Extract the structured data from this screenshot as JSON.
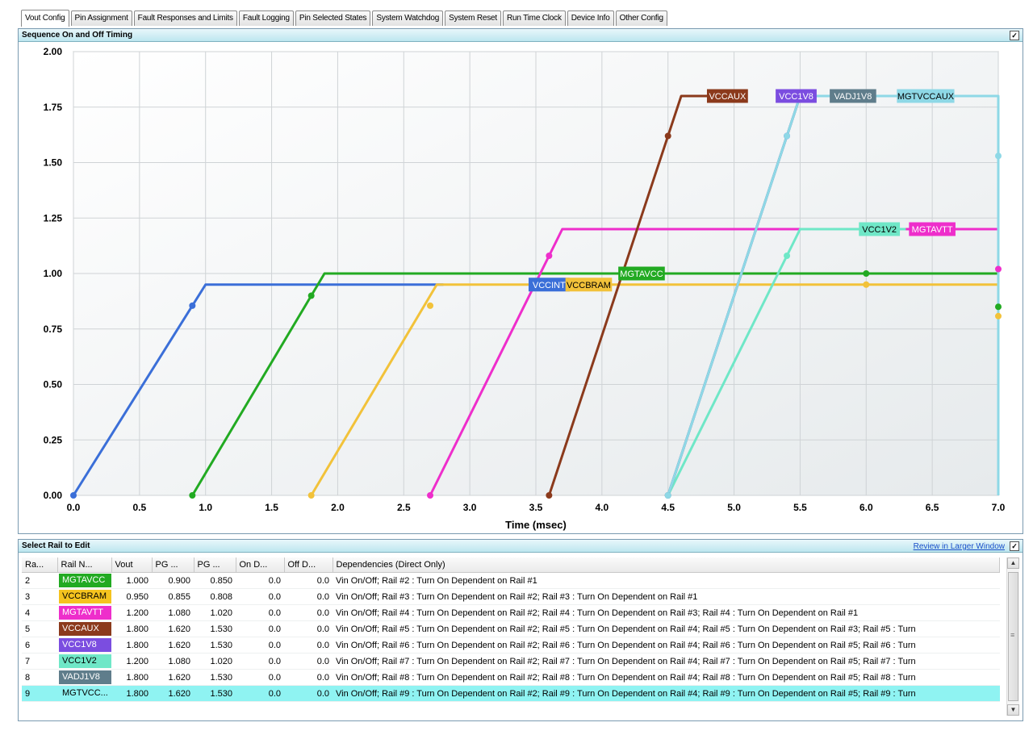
{
  "tabs": [
    {
      "label": "Vout Config",
      "active": true
    },
    {
      "label": "Pin Assignment"
    },
    {
      "label": "Fault Responses and Limits"
    },
    {
      "label": "Fault Logging"
    },
    {
      "label": "Pin Selected States"
    },
    {
      "label": "System Watchdog"
    },
    {
      "label": "System Reset"
    },
    {
      "label": "Run Time Clock"
    },
    {
      "label": "Device Info"
    },
    {
      "label": "Other Config"
    }
  ],
  "chart_panel": {
    "title": "Sequence On and Off Timing",
    "checkbox_mark": "✓"
  },
  "chart_data": {
    "type": "line",
    "xlabel": "Time (msec)",
    "ylabel": "",
    "xlim": [
      0,
      7
    ],
    "ylim": [
      0,
      2
    ],
    "x_ticks": [
      "0.0",
      "0.5",
      "1.0",
      "1.5",
      "2.0",
      "2.5",
      "3.0",
      "3.5",
      "4.0",
      "4.5",
      "5.0",
      "5.5",
      "6.0",
      "6.5",
      "7.0"
    ],
    "y_ticks": [
      "0.00",
      "0.25",
      "0.50",
      "0.75",
      "1.00",
      "1.25",
      "1.50",
      "1.75",
      "2.00"
    ],
    "grid": true,
    "series": [
      {
        "name": "VCCINT",
        "color": "#3b6fd8",
        "points": [
          [
            0,
            0
          ],
          [
            1.0,
            0.95
          ],
          [
            2.8,
            0.95
          ]
        ],
        "markers": [
          [
            0,
            0
          ],
          [
            0.9,
            0.855
          ]
        ],
        "label_at": [
          3.6,
          0.95
        ]
      },
      {
        "name": "MGTAVCC",
        "color": "#22aa22",
        "points": [
          [
            0.9,
            0
          ],
          [
            1.9,
            1.0
          ],
          [
            7.0,
            1.0
          ],
          [
            7.0,
            0.85
          ]
        ],
        "markers": [
          [
            0.9,
            0
          ],
          [
            1.8,
            0.9
          ],
          [
            6.0,
            1.0
          ],
          [
            7.0,
            0.85
          ]
        ],
        "label_at": [
          4.3,
          1.0
        ]
      },
      {
        "name": "VCCBRAM",
        "color": "#f2c23a",
        "points": [
          [
            1.8,
            0
          ],
          [
            2.75,
            0.95
          ],
          [
            7.0,
            0.95
          ],
          [
            7.0,
            0.808
          ]
        ],
        "markers": [
          [
            1.8,
            0
          ],
          [
            2.7,
            0.855
          ],
          [
            6.0,
            0.95
          ],
          [
            7.0,
            0.808
          ]
        ],
        "label_at": [
          3.9,
          0.95
        ]
      },
      {
        "name": "MGTAVTT",
        "color": "#ee2ecb",
        "points": [
          [
            2.7,
            0
          ],
          [
            3.7,
            1.2
          ],
          [
            7.0,
            1.2
          ],
          [
            7.0,
            1.02
          ]
        ],
        "markers": [
          [
            2.7,
            0
          ],
          [
            3.6,
            1.08
          ],
          [
            7.0,
            1.02
          ]
        ],
        "label_at": [
          6.5,
          1.2
        ]
      },
      {
        "name": "VCCAUX",
        "color": "#8b3a1c",
        "points": [
          [
            3.6,
            0
          ],
          [
            4.6,
            1.8
          ],
          [
            5.05,
            1.8
          ]
        ],
        "markers": [
          [
            3.6,
            0
          ],
          [
            4.5,
            1.62
          ]
        ],
        "label_at": [
          4.95,
          1.8
        ]
      },
      {
        "name": "VCC1V8",
        "color": "#7b4de0",
        "points": [
          [
            4.5,
            0
          ],
          [
            5.5,
            1.8
          ],
          [
            5.55,
            1.8
          ]
        ],
        "markers": [
          [
            4.5,
            0
          ],
          [
            5.4,
            1.62
          ]
        ],
        "label_at": [
          5.47,
          1.8
        ]
      },
      {
        "name": "VCC1V2",
        "color": "#6fe7c7",
        "points": [
          [
            4.5,
            0
          ],
          [
            5.5,
            1.2
          ],
          [
            6.3,
            1.2
          ]
        ],
        "markers": [
          [
            4.5,
            0
          ],
          [
            5.4,
            1.08
          ]
        ],
        "label_at": [
          6.1,
          1.2
        ]
      },
      {
        "name": "VADJ1V8",
        "color": "#5f7d8b",
        "points": [
          [
            4.5,
            0
          ],
          [
            5.5,
            1.8
          ]
        ],
        "markers": [
          [
            4.5,
            0
          ]
        ],
        "label_at": [
          5.9,
          1.8
        ]
      },
      {
        "name": "MGTVCCAUX",
        "color": "#8ed8e6",
        "points": [
          [
            4.5,
            0
          ],
          [
            5.5,
            1.8
          ],
          [
            7.0,
            1.8
          ],
          [
            7.0,
            0
          ]
        ],
        "markers": [
          [
            4.5,
            0
          ],
          [
            5.4,
            1.62
          ],
          [
            7.0,
            1.53
          ]
        ],
        "label_at": [
          6.45,
          1.8
        ]
      }
    ]
  },
  "rail_panel": {
    "title": "Select Rail to Edit",
    "review_link": "Review in Larger Window",
    "checkbox_mark": "✓"
  },
  "table": {
    "headers": [
      "Ra...",
      "Rail N...",
      "Vout",
      "PG ...",
      "PG ...",
      "On D...",
      "Off D...",
      "Dependencies (Direct Only)"
    ],
    "rows": [
      {
        "rail": "2",
        "name": "MGTAVCC",
        "color": "#22aa22",
        "text_color": "#ffffff",
        "vout": "1.000",
        "pg1": "0.900",
        "pg2": "0.850",
        "on": "0.0",
        "off": "0.0",
        "deps": "Vin On/Off; Rail #2 : Turn On Dependent on Rail #1"
      },
      {
        "rail": "3",
        "name": "VCCBRAM",
        "color": "#f5c31f",
        "text_color": "#000000",
        "vout": "0.950",
        "pg1": "0.855",
        "pg2": "0.808",
        "on": "0.0",
        "off": "0.0",
        "deps": "Vin On/Off; Rail #3 : Turn On Dependent on Rail #2; Rail #3 : Turn On Dependent on Rail #1"
      },
      {
        "rail": "4",
        "name": "MGTAVTT",
        "color": "#ee2ecb",
        "text_color": "#ffffff",
        "vout": "1.200",
        "pg1": "1.080",
        "pg2": "1.020",
        "on": "0.0",
        "off": "0.0",
        "deps": "Vin On/Off; Rail #4 : Turn On Dependent on Rail #2; Rail #4 : Turn On Dependent on Rail #3; Rail #4 : Turn On Dependent on Rail #1"
      },
      {
        "rail": "5",
        "name": "VCCAUX",
        "color": "#8b3a1c",
        "text_color": "#ffffff",
        "vout": "1.800",
        "pg1": "1.620",
        "pg2": "1.530",
        "on": "0.0",
        "off": "0.0",
        "deps": "Vin On/Off; Rail #5 : Turn On Dependent on Rail #2; Rail #5 : Turn On Dependent on Rail #4; Rail #5 : Turn On Dependent on Rail #3; Rail #5 : Turn"
      },
      {
        "rail": "6",
        "name": "VCC1V8",
        "color": "#7b4de0",
        "text_color": "#ffffff",
        "vout": "1.800",
        "pg1": "1.620",
        "pg2": "1.530",
        "on": "0.0",
        "off": "0.0",
        "deps": "Vin On/Off; Rail #6 : Turn On Dependent on Rail #2; Rail #6 : Turn On Dependent on Rail #4; Rail #6 : Turn On Dependent on Rail #5; Rail #6 : Turn"
      },
      {
        "rail": "7",
        "name": "VCC1V2",
        "color": "#6fe7c7",
        "text_color": "#000000",
        "vout": "1.200",
        "pg1": "1.080",
        "pg2": "1.020",
        "on": "0.0",
        "off": "0.0",
        "deps": "Vin On/Off; Rail #7 : Turn On Dependent on Rail #2; Rail #7 : Turn On Dependent on Rail #4; Rail #7 : Turn On Dependent on Rail #5; Rail #7 : Turn"
      },
      {
        "rail": "8",
        "name": "VADJ1V8",
        "color": "#5f7d8b",
        "text_color": "#ffffff",
        "vout": "1.800",
        "pg1": "1.620",
        "pg2": "1.530",
        "on": "0.0",
        "off": "0.0",
        "deps": "Vin On/Off; Rail #8 : Turn On Dependent on Rail #2; Rail #8 : Turn On Dependent on Rail #4; Rail #8 : Turn On Dependent on Rail #5; Rail #8 : Turn"
      },
      {
        "rail": "9",
        "name": "MGTVCC...",
        "color": "",
        "text_color": "#000000",
        "vout": "1.800",
        "pg1": "1.620",
        "pg2": "1.530",
        "on": "0.0",
        "off": "0.0",
        "deps": "Vin On/Off; Rail #9 : Turn On Dependent on Rail #2; Rail #9 : Turn On Dependent on Rail #4; Rail #9 : Turn On Dependent on Rail #5; Rail #9 : Turn",
        "selected": true
      }
    ]
  },
  "scrollbar": {
    "up": "▲",
    "down": "▼",
    "grip": "≡"
  }
}
